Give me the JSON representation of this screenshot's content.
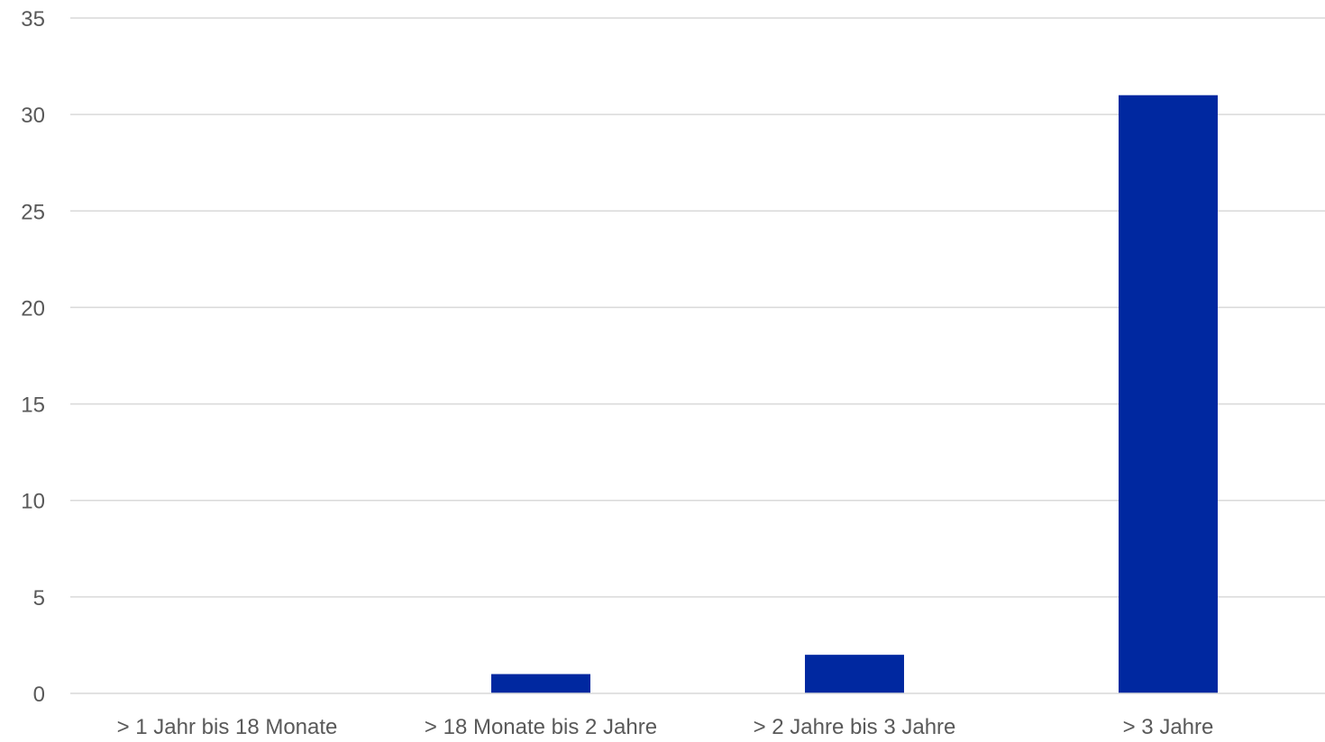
{
  "chart_data": {
    "type": "bar",
    "categories": [
      "> 1 Jahr bis 18 Monate",
      "> 18 Monate bis 2 Jahre",
      "> 2 Jahre bis 3 Jahre",
      "> 3 Jahre"
    ],
    "values": [
      0,
      1,
      2,
      31
    ],
    "title": "",
    "xlabel": "",
    "ylabel": "",
    "ylim": [
      0,
      35
    ],
    "yticks": [
      0,
      5,
      10,
      15,
      20,
      25,
      30,
      35
    ],
    "grid": true,
    "legend": "none",
    "bar_color": "#0028a0"
  }
}
